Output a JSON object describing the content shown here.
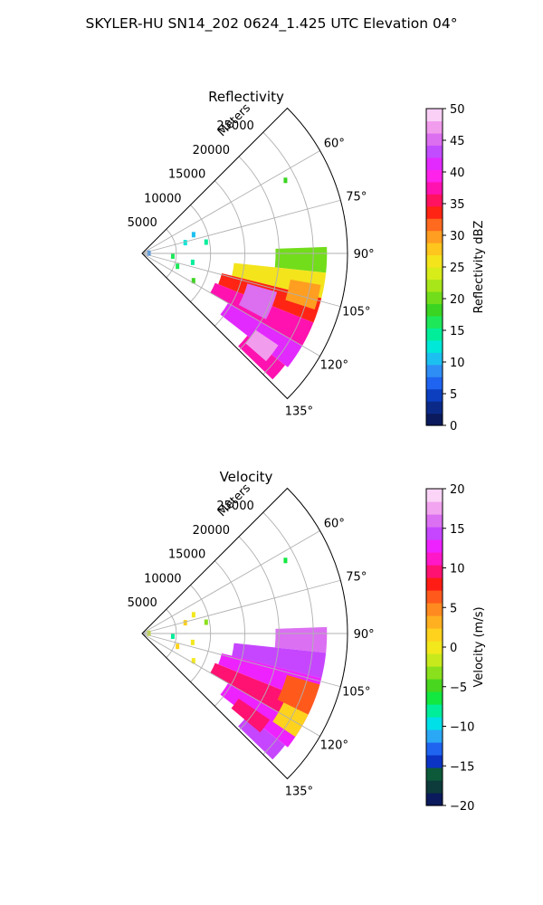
{
  "figure": {
    "suptitle": "SKYLER-HU  SN14_202  0624_1.425 UTC Elevation 04°"
  },
  "chart_data": [
    {
      "type": "heatmap",
      "projection": "polar-sector",
      "title": "Reflectivity",
      "radial_label": "Meters",
      "theta_range_deg": [
        45,
        135
      ],
      "r_range_m": [
        0,
        30000
      ],
      "theta_ticks_deg": [
        60,
        75,
        90,
        105,
        120,
        135
      ],
      "theta_tick_labels": [
        "60°",
        "75°",
        "90°",
        "105°",
        "120°",
        "135°"
      ],
      "r_ticks_m": [
        5000,
        10000,
        15000,
        20000,
        25000
      ],
      "r_tick_labels": [
        "5000",
        "10000",
        "15000",
        "20000",
        "25000"
      ],
      "grid": true,
      "colorbar": {
        "label": "Reflectivity dBZ",
        "vmin": 0,
        "vmax": 50,
        "ticks": [
          0,
          5,
          10,
          15,
          20,
          25,
          30,
          35,
          40,
          45,
          50
        ],
        "tick_labels": [
          "0",
          "5",
          "10",
          "15",
          "20",
          "25",
          "30",
          "35",
          "40",
          "45",
          "50"
        ],
        "colors": [
          "#0a1a5c",
          "#0b2a88",
          "#0b3fc0",
          "#1f64f0",
          "#2f8ef5",
          "#1cc0f0",
          "#00e8d8",
          "#00ee9a",
          "#1ee85a",
          "#3bd422",
          "#72dd1a",
          "#a8e61a",
          "#d8ec1a",
          "#f4e41c",
          "#ffc61e",
          "#ff9e20",
          "#ff6a1e",
          "#ff2414",
          "#ff1260",
          "#ff12b0",
          "#ff22ea",
          "#e22aff",
          "#c24cff",
          "#dc6ef0",
          "#f29cee",
          "#fbd0f7"
        ]
      },
      "echo_regions": [
        {
          "theta_deg": [
            88,
            96
          ],
          "r_m": [
            19500,
            27000
          ],
          "value": 20
        },
        {
          "theta_deg": [
            96,
            104
          ],
          "r_m": [
            13500,
            27000
          ],
          "value": 26
        },
        {
          "theta_deg": [
            104,
            112
          ],
          "r_m": [
            12000,
            27000
          ],
          "value": 34
        },
        {
          "theta_deg": [
            112,
            120
          ],
          "r_m": [
            11500,
            27000
          ],
          "value": 38
        },
        {
          "theta_deg": [
            120,
            128
          ],
          "r_m": [
            14500,
            27000
          ],
          "value": 42
        },
        {
          "theta_deg": [
            128,
            134
          ],
          "r_m": [
            19500,
            26500
          ],
          "value": 38
        },
        {
          "theta_deg": [
            106,
            118
          ],
          "r_m": [
            16000,
            20500
          ],
          "value": 46
        },
        {
          "theta_deg": [
            124,
            131
          ],
          "r_m": [
            20000,
            24000
          ],
          "value": 48
        },
        {
          "theta_deg": [
            100,
            108
          ],
          "r_m": [
            22000,
            26500
          ],
          "value": 30
        }
      ],
      "speckles": [
        {
          "theta_deg": 70,
          "r_m": 8000,
          "value": 10
        },
        {
          "theta_deg": 76,
          "r_m": 6500,
          "value": 12
        },
        {
          "theta_deg": 63,
          "r_m": 23500,
          "value": 18
        },
        {
          "theta_deg": 80,
          "r_m": 9500,
          "value": 14
        },
        {
          "theta_deg": 95,
          "r_m": 4500,
          "value": 16
        },
        {
          "theta_deg": 88,
          "r_m": 1000,
          "value": 8
        },
        {
          "theta_deg": 100,
          "r_m": 7500,
          "value": 14
        },
        {
          "theta_deg": 110,
          "r_m": 5500,
          "value": 16
        },
        {
          "theta_deg": 118,
          "r_m": 8500,
          "value": 18
        }
      ]
    },
    {
      "type": "heatmap",
      "projection": "polar-sector",
      "title": "Velocity",
      "radial_label": "Meters",
      "theta_range_deg": [
        45,
        135
      ],
      "r_range_m": [
        0,
        30000
      ],
      "theta_ticks_deg": [
        60,
        75,
        90,
        105,
        120,
        135
      ],
      "theta_tick_labels": [
        "60°",
        "75°",
        "90°",
        "105°",
        "120°",
        "135°"
      ],
      "r_ticks_m": [
        5000,
        10000,
        15000,
        20000,
        25000
      ],
      "r_tick_labels": [
        "5000",
        "10000",
        "15000",
        "20000",
        "25000"
      ],
      "grid": true,
      "colorbar": {
        "label": "Velocity (m/s)",
        "vmin": -20,
        "vmax": 20,
        "ticks": [
          -20,
          -15,
          -10,
          -5,
          0,
          5,
          10,
          15,
          20
        ],
        "tick_labels": [
          "−20",
          "−15",
          "−10",
          "−5",
          "0",
          "5",
          "10",
          "15",
          "20"
        ],
        "colors": [
          "#0a1a5c",
          "#0d3a3a",
          "#0c5a3a",
          "#0b34c4",
          "#1f64f0",
          "#2aa8f5",
          "#00e0e8",
          "#00ee9a",
          "#12e840",
          "#48d61e",
          "#8ae01c",
          "#c8ea1c",
          "#f2e81c",
          "#ffd21e",
          "#ffb020",
          "#ff8a20",
          "#ff5a1c",
          "#ff1c14",
          "#ff1272",
          "#ff18c8",
          "#ee22ff",
          "#c646ff",
          "#dc70f2",
          "#f2a4f0",
          "#fbd4f7"
        ]
      },
      "echo_regions": [
        {
          "theta_deg": [
            88,
            96
          ],
          "r_m": [
            19500,
            27000
          ],
          "value": 16
        },
        {
          "theta_deg": [
            96,
            104
          ],
          "r_m": [
            13500,
            27000
          ],
          "value": 14
        },
        {
          "theta_deg": [
            104,
            112
          ],
          "r_m": [
            12000,
            27000
          ],
          "value": 12
        },
        {
          "theta_deg": [
            112,
            120
          ],
          "r_m": [
            11500,
            27000
          ],
          "value": 10
        },
        {
          "theta_deg": [
            120,
            128
          ],
          "r_m": [
            14500,
            27000
          ],
          "value": 12
        },
        {
          "theta_deg": [
            128,
            134
          ],
          "r_m": [
            19500,
            26500
          ],
          "value": 14
        },
        {
          "theta_deg": [
            106,
            116
          ],
          "r_m": [
            22000,
            27000
          ],
          "value": 6
        },
        {
          "theta_deg": [
            116,
            124
          ],
          "r_m": [
            23000,
            27000
          ],
          "value": 2
        },
        {
          "theta_deg": [
            124,
            130
          ],
          "r_m": [
            17000,
            22500
          ],
          "value": 10
        }
      ],
      "speckles": [
        {
          "theta_deg": 70,
          "r_m": 8000,
          "value": 0
        },
        {
          "theta_deg": 76,
          "r_m": 6500,
          "value": 2
        },
        {
          "theta_deg": 63,
          "r_m": 23500,
          "value": -6
        },
        {
          "theta_deg": 80,
          "r_m": 9500,
          "value": -4
        },
        {
          "theta_deg": 95,
          "r_m": 4500,
          "value": -8
        },
        {
          "theta_deg": 88,
          "r_m": 1000,
          "value": -2
        },
        {
          "theta_deg": 100,
          "r_m": 7500,
          "value": 0
        },
        {
          "theta_deg": 110,
          "r_m": 5500,
          "value": 2
        },
        {
          "theta_deg": 118,
          "r_m": 8500,
          "value": 0
        }
      ]
    }
  ]
}
